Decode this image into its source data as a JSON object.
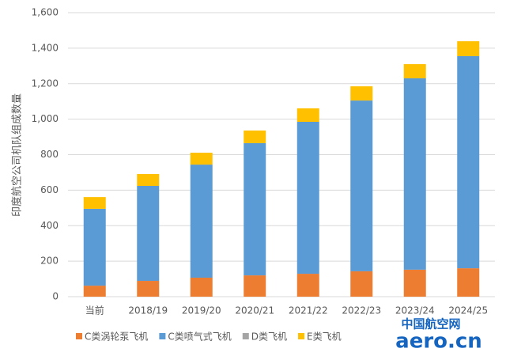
{
  "chart_data": {
    "type": "stacked_bar",
    "y_label": "印度航空公司机队组成数量",
    "categories": [
      "当前",
      "2018/19",
      "2019/20",
      "2020/21",
      "2021/22",
      "2022/23",
      "2023/24",
      "2024/25"
    ],
    "series": [
      {
        "name": "C类涡轮泵飞机",
        "color": "#ed7d31",
        "values": [
          62,
          89,
          107,
          120,
          129,
          143,
          152,
          160
        ]
      },
      {
        "name": "C类喷气式飞机",
        "color": "#5b9bd5",
        "values": [
          433,
          535,
          637,
          745,
          856,
          962,
          1078,
          1195
        ]
      },
      {
        "name": "D类飞机",
        "color": "#a5a5a5",
        "values": [
          0,
          0,
          0,
          0,
          0,
          0,
          0,
          0
        ]
      },
      {
        "name": "E类飞机",
        "color": "#ffc000",
        "values": [
          66,
          67,
          67,
          71,
          76,
          80,
          80,
          84
        ]
      }
    ],
    "ylim": [
      0,
      1600
    ],
    "yticks": [
      0,
      200,
      400,
      600,
      800,
      {
        "value": 1000,
        "label": "1,000"
      },
      {
        "value": 1200,
        "label": "1,200"
      },
      {
        "value": 1400,
        "label": "1,400"
      },
      {
        "value": 1600,
        "label": "1,600"
      }
    ],
    "grid": true,
    "legend": "bottom",
    "watermark": {
      "cn": "中国航空网",
      "en": "aero.cn"
    }
  }
}
